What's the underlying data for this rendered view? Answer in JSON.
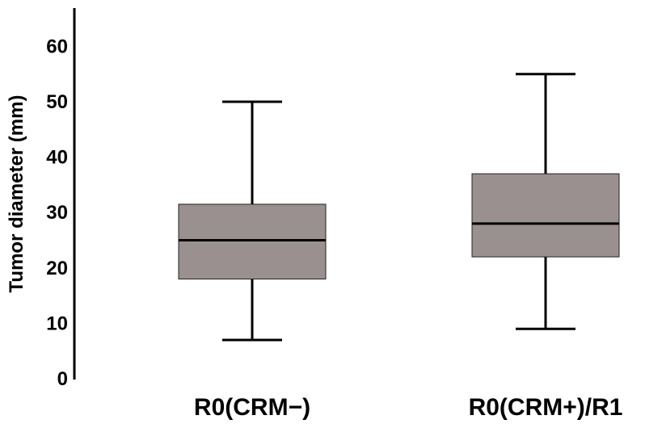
{
  "chart_data": {
    "type": "boxplot",
    "title": "",
    "xlabel": "",
    "ylabel": "Tumor diameter (mm)",
    "ylim": [
      0,
      66
    ],
    "yticks": [
      "0",
      "10",
      "20",
      "30",
      "40",
      "50",
      "60"
    ],
    "grid": false,
    "categories": [
      "R0(CRM−)",
      "R0(CRM+)/R1"
    ],
    "series": [
      {
        "whisker_low": 7,
        "q1": 18,
        "median": 25,
        "q3": 31.5,
        "whisker_high": 50
      },
      {
        "whisker_low": 9,
        "q1": 22,
        "median": 28,
        "q3": 37,
        "whisker_high": 55
      }
    ],
    "box_color": "#9b9090"
  }
}
